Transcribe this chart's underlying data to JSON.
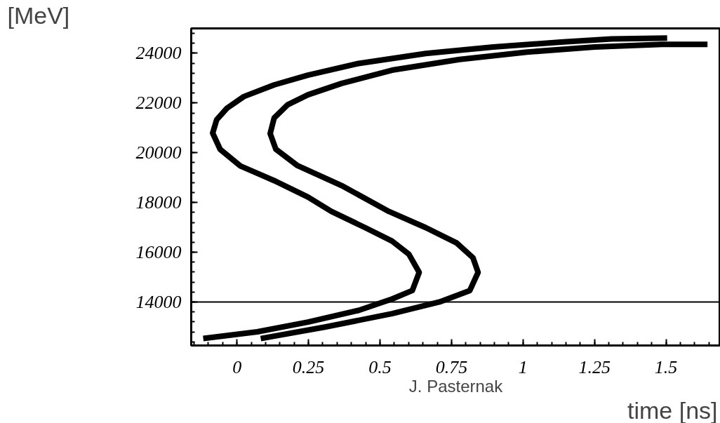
{
  "chart_data": {
    "type": "line",
    "xlabel": "time [ns]",
    "ylabel": "[MeV]",
    "annotations": [
      "J. Pasternak"
    ],
    "xlim": [
      -0.16,
      1.69
    ],
    "ylim": [
      12250,
      25000
    ],
    "xticks": [
      0,
      0.25,
      0.5,
      0.75,
      1,
      1.25,
      1.5
    ],
    "yticks": [
      14000,
      16000,
      18000,
      20000,
      22000,
      24000
    ],
    "grid": false,
    "marker": "none",
    "line_style": "solid",
    "ref_lines": [
      {
        "axis": "y",
        "value": 14000,
        "color": "#000000"
      }
    ],
    "series": [
      {
        "color": "#000000",
        "x": [
          -0.118,
          0.071,
          0.248,
          0.425,
          0.542,
          0.613,
          0.637,
          0.601,
          0.542,
          0.448,
          0.33,
          0.248,
          0.13,
          0.012,
          -0.059,
          -0.085,
          -0.071,
          -0.035,
          0.024,
          0.13,
          0.248,
          0.425,
          0.66,
          0.896,
          1.132,
          1.309,
          1.504
        ],
        "values": [
          12530,
          12800,
          13190,
          13660,
          14120,
          14460,
          15190,
          15920,
          16450,
          16990,
          17640,
          18220,
          18880,
          19470,
          20140,
          20790,
          21330,
          21790,
          22260,
          22730,
          23120,
          23590,
          23990,
          24250,
          24450,
          24580,
          24610
        ]
      },
      {
        "color": "#000000",
        "x": [
          0.083,
          0.307,
          0.542,
          0.708,
          0.814,
          0.843,
          0.825,
          0.767,
          0.66,
          0.531,
          0.366,
          0.212,
          0.136,
          0.116,
          0.13,
          0.177,
          0.248,
          0.366,
          0.542,
          0.778,
          1.014,
          1.25,
          1.486,
          1.645
        ],
        "values": [
          12530,
          12990,
          13530,
          14000,
          14460,
          15190,
          15780,
          16380,
          16990,
          17640,
          18680,
          19480,
          20140,
          20770,
          21400,
          21930,
          22330,
          22790,
          23320,
          23750,
          24050,
          24250,
          24360,
          24360
        ]
      }
    ]
  }
}
